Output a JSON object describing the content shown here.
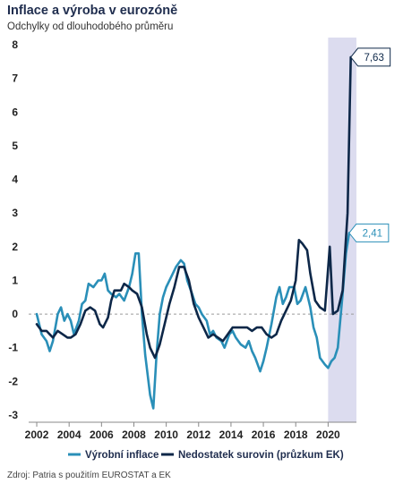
{
  "title": "Inflace a výroba v eurozóně",
  "subtitle": "Odchylky od dlouhodobého průměru",
  "source": "Zdroj: Patria s použitím EUROSTAT a EK",
  "colors": {
    "producer": "#2a8fb8",
    "shortage": "#0d2748",
    "shade": "#dcdcef",
    "zero_line": "#9a9a9a"
  },
  "chart_data": {
    "type": "line",
    "title": "Inflace a výroba v eurozóně",
    "subtitle": "Odchylky od dlouhodobého průměru",
    "ylim": [
      -3,
      8
    ],
    "xlim": [
      2001.5,
      2021.75
    ],
    "y_ticks": [
      "8",
      "7",
      "6",
      "5",
      "4",
      "3",
      "2",
      "1",
      "0",
      "-1",
      "-2",
      "-3"
    ],
    "x_ticks": [
      "2002",
      "2004",
      "2006",
      "2008",
      "2010",
      "2012",
      "2014",
      "2016",
      "2018",
      "2020"
    ],
    "grid": false,
    "zero_line": true,
    "shaded_region": [
      2020.0,
      2021.75
    ],
    "legend_position": "bottom",
    "series": [
      {
        "name": "Výrobní inflace",
        "color": "#2a8fb8",
        "x": [
          2002.0,
          2002.3,
          2002.6,
          2002.8,
          2003.0,
          2003.3,
          2003.5,
          2003.7,
          2003.9,
          2004.1,
          2004.3,
          2004.6,
          2004.8,
          2005.0,
          2005.2,
          2005.5,
          2005.8,
          2006.0,
          2006.2,
          2006.4,
          2006.6,
          2006.9,
          2007.1,
          2007.4,
          2007.7,
          2007.9,
          2008.1,
          2008.3,
          2008.5,
          2008.7,
          2009.0,
          2009.2,
          2009.4,
          2009.6,
          2009.8,
          2010.0,
          2010.3,
          2010.6,
          2010.9,
          2011.1,
          2011.3,
          2011.6,
          2011.8,
          2012.0,
          2012.2,
          2012.5,
          2012.7,
          2012.9,
          2013.1,
          2013.4,
          2013.6,
          2013.9,
          2014.1,
          2014.3,
          2014.6,
          2014.9,
          2015.1,
          2015.3,
          2015.5,
          2015.8,
          2016.0,
          2016.2,
          2016.5,
          2016.8,
          2017.0,
          2017.2,
          2017.4,
          2017.6,
          2017.9,
          2018.1,
          2018.3,
          2018.6,
          2018.9,
          2019.1,
          2019.3,
          2019.5,
          2019.8,
          2020.0,
          2020.2,
          2020.4,
          2020.6,
          2020.9,
          2021.1,
          2021.3
        ],
        "values": [
          0.0,
          -0.6,
          -0.8,
          -1.1,
          -0.8,
          0.0,
          0.2,
          -0.2,
          0.0,
          -0.2,
          -0.6,
          -0.2,
          0.3,
          0.4,
          0.9,
          0.8,
          1.0,
          1.0,
          1.2,
          0.7,
          0.6,
          0.5,
          0.6,
          0.4,
          0.8,
          1.2,
          1.8,
          1.8,
          0.0,
          -1.2,
          -2.4,
          -2.8,
          -1.2,
          0.0,
          0.5,
          0.8,
          1.1,
          1.4,
          1.6,
          1.5,
          1.0,
          0.6,
          0.3,
          0.2,
          0.0,
          -0.2,
          -0.6,
          -0.5,
          -0.7,
          -0.8,
          -1.0,
          -0.6,
          -0.5,
          -0.7,
          -0.9,
          -1.0,
          -0.8,
          -1.1,
          -1.3,
          -1.7,
          -1.4,
          -1.0,
          -0.3,
          0.5,
          0.8,
          0.3,
          0.5,
          0.8,
          0.8,
          0.3,
          0.4,
          0.8,
          0.2,
          -0.4,
          -0.7,
          -1.3,
          -1.5,
          -1.6,
          -1.4,
          -1.3,
          -1.0,
          0.6,
          1.8,
          2.41
        ]
      },
      {
        "name": "Nedostatek surovin (průzkum EK)",
        "color": "#0d2748",
        "x": [
          2002.0,
          2002.3,
          2002.6,
          2002.8,
          2003.0,
          2003.3,
          2003.6,
          2003.9,
          2004.1,
          2004.4,
          2004.7,
          2005.0,
          2005.3,
          2005.6,
          2005.9,
          2006.1,
          2006.4,
          2006.6,
          2006.8,
          2007.0,
          2007.2,
          2007.4,
          2007.7,
          2007.9,
          2008.2,
          2008.5,
          2008.8,
          2009.0,
          2009.3,
          2009.6,
          2009.9,
          2010.2,
          2010.5,
          2010.8,
          2011.1,
          2011.4,
          2011.7,
          2012.0,
          2012.3,
          2012.6,
          2012.9,
          2013.2,
          2013.5,
          2013.8,
          2014.1,
          2014.4,
          2014.7,
          2015.0,
          2015.3,
          2015.6,
          2015.9,
          2016.2,
          2016.5,
          2016.8,
          2017.1,
          2017.4,
          2017.7,
          2018.0,
          2018.2,
          2018.4,
          2018.7,
          2018.9,
          2019.2,
          2019.5,
          2019.8,
          2020.1,
          2020.3,
          2020.6,
          2020.9,
          2021.2,
          2021.4
        ],
        "values": [
          -0.3,
          -0.5,
          -0.5,
          -0.6,
          -0.7,
          -0.5,
          -0.6,
          -0.7,
          -0.7,
          -0.6,
          -0.3,
          0.1,
          0.2,
          0.1,
          -0.3,
          -0.4,
          -0.1,
          0.4,
          0.7,
          0.7,
          0.7,
          0.9,
          0.8,
          0.7,
          0.6,
          0.2,
          -0.6,
          -1.0,
          -1.3,
          -0.9,
          -0.3,
          0.3,
          0.8,
          1.4,
          1.4,
          1.0,
          0.3,
          -0.1,
          -0.4,
          -0.7,
          -0.6,
          -0.7,
          -0.8,
          -0.6,
          -0.4,
          -0.4,
          -0.4,
          -0.4,
          -0.5,
          -0.4,
          -0.4,
          -0.6,
          -0.7,
          -0.6,
          -0.2,
          0.1,
          0.4,
          1.0,
          2.2,
          2.1,
          1.9,
          1.2,
          0.4,
          0.2,
          0.1,
          2.0,
          0.0,
          0.1,
          0.7,
          3.0,
          7.63
        ]
      }
    ],
    "annotations": [
      {
        "series": "Nedostatek surovin (průzkum EK)",
        "label": "7,63"
      },
      {
        "series": "Výrobní inflace",
        "label": "2,41"
      }
    ]
  }
}
